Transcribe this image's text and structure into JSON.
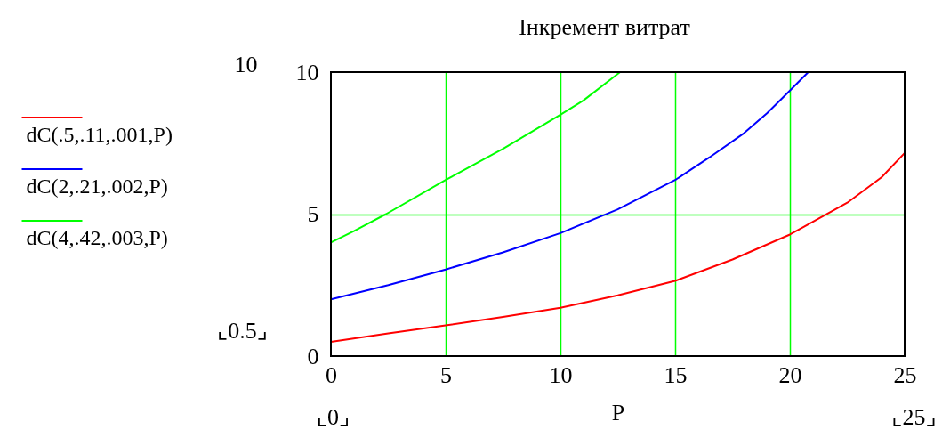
{
  "chart_data": {
    "type": "line",
    "title": "Інкремент витрат",
    "xlabel": "P",
    "xlim": [
      0,
      25
    ],
    "xticks": [
      0,
      5,
      10,
      15,
      20,
      25
    ],
    "ylim": [
      0,
      10
    ],
    "yticks": [
      0,
      5,
      10
    ],
    "grid": true,
    "legend": "left",
    "annotations": [
      "10",
      "⌞0.5⌟",
      "⌞0⌟",
      "⌞25⌟"
    ],
    "series": [
      {
        "name": "dC(.5,.11,.001,P)",
        "color": "#ff0000",
        "x": [
          0,
          2.5,
          5,
          7.5,
          10,
          12.5,
          15,
          17.5,
          20,
          22.5,
          24,
          25
        ],
        "values": [
          0.5,
          0.8,
          1.08,
          1.38,
          1.7,
          2.14,
          2.65,
          3.4,
          4.28,
          5.4,
          6.3,
          7.15
        ]
      },
      {
        "name": "dC(2,.21,.002,P)",
        "color": "#0000ff",
        "x": [
          0,
          2.5,
          5,
          7.5,
          10,
          12.5,
          15,
          16.5,
          18,
          19,
          20,
          20.8
        ],
        "values": [
          2.0,
          2.5,
          3.05,
          3.65,
          4.33,
          5.17,
          6.2,
          7.0,
          7.85,
          8.55,
          9.35,
          10
        ]
      },
      {
        "name": "dC(4,.42,.003,P)",
        "color": "#00ff00",
        "x": [
          0,
          1,
          2.4,
          5,
          7.5,
          10,
          11,
          12.6
        ],
        "values": [
          4.0,
          4.4,
          5.0,
          6.2,
          7.3,
          8.5,
          9.0,
          10
        ]
      }
    ]
  }
}
